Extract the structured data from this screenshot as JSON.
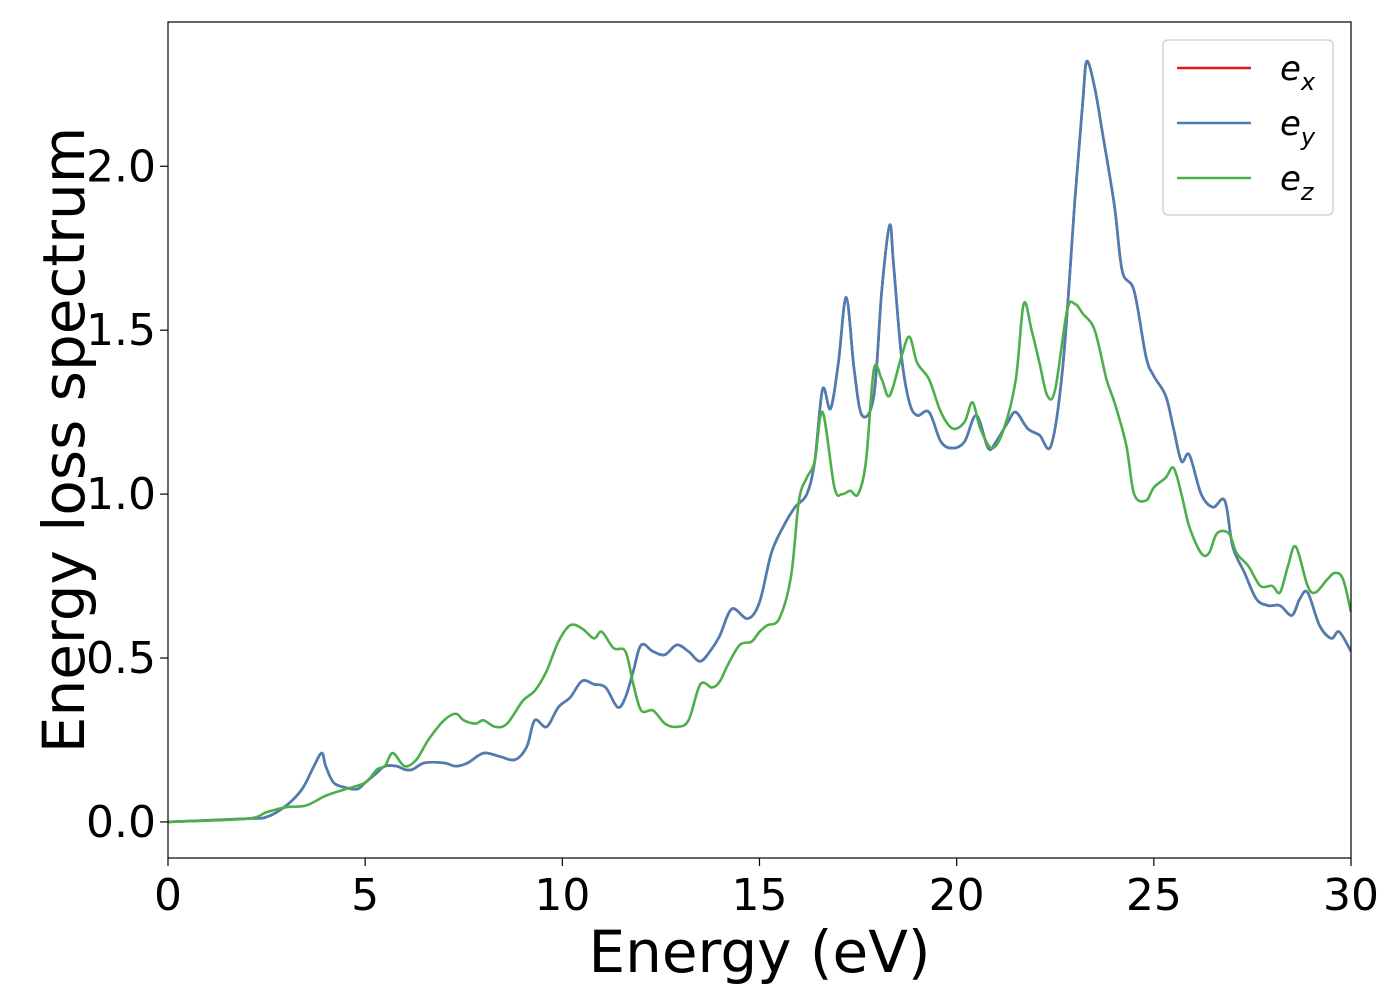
{
  "chart_data": {
    "type": "line",
    "xlabel": "Energy (eV)",
    "ylabel": "Energy loss spectrum",
    "xlim": [
      0,
      30
    ],
    "ylim": [
      -0.11,
      2.44
    ],
    "xticks": [
      0,
      5,
      10,
      15,
      20,
      25,
      30
    ],
    "xtick_labels": [
      "0",
      "5",
      "10",
      "15",
      "20",
      "25",
      "30"
    ],
    "yticks": [
      0.0,
      0.5,
      1.0,
      1.5,
      2.0
    ],
    "ytick_labels": [
      "0.0",
      "0.5",
      "1.0",
      "1.5",
      "2.0"
    ],
    "grid": false,
    "legend_position": "top-right",
    "legend": [
      {
        "base": "e",
        "sub": "x"
      },
      {
        "base": "e",
        "sub": "y"
      },
      {
        "base": "e",
        "sub": "z"
      }
    ],
    "series": [
      {
        "name": "e_x",
        "color": "#e41a1c",
        "x": [
          0,
          2,
          2.5,
          3,
          3.4,
          3.7,
          3.9,
          4.0,
          4.2,
          4.5,
          4.8,
          5.0,
          5.3,
          5.5,
          5.8,
          6.0,
          6.2,
          6.5,
          7.0,
          7.3,
          7.6,
          8.0,
          8.4,
          8.8,
          9.1,
          9.3,
          9.6,
          9.9,
          10.2,
          10.5,
          10.8,
          11.1,
          11.4,
          11.6,
          11.8,
          12.0,
          12.3,
          12.6,
          12.9,
          13.2,
          13.5,
          13.8,
          14.0,
          14.3,
          14.7,
          15.0,
          15.3,
          15.6,
          15.9,
          16.2,
          16.4,
          16.6,
          16.8,
          17.0,
          17.2,
          17.4,
          17.6,
          17.9,
          18.1,
          18.3,
          18.4,
          18.6,
          18.8,
          19.0,
          19.3,
          19.6,
          19.9,
          20.2,
          20.5,
          20.8,
          21.0,
          21.3,
          21.5,
          21.8,
          22.1,
          22.4,
          22.7,
          23.0,
          23.2,
          23.3,
          23.5,
          23.7,
          24.0,
          24.2,
          24.5,
          24.8,
          25.0,
          25.3,
          25.5,
          25.7,
          25.9,
          26.2,
          26.5,
          26.8,
          27.0,
          27.3,
          27.6,
          27.9,
          28.2,
          28.5,
          28.7,
          28.9,
          29.2,
          29.5,
          29.7,
          30.0
        ],
        "y": [
          0,
          0.01,
          0.015,
          0.05,
          0.1,
          0.17,
          0.21,
          0.17,
          0.12,
          0.105,
          0.1,
          0.12,
          0.15,
          0.17,
          0.17,
          0.16,
          0.16,
          0.18,
          0.18,
          0.17,
          0.18,
          0.21,
          0.2,
          0.19,
          0.23,
          0.31,
          0.29,
          0.35,
          0.38,
          0.43,
          0.42,
          0.41,
          0.35,
          0.38,
          0.46,
          0.54,
          0.52,
          0.51,
          0.54,
          0.52,
          0.49,
          0.53,
          0.57,
          0.65,
          0.62,
          0.67,
          0.82,
          0.9,
          0.96,
          1.0,
          1.1,
          1.32,
          1.26,
          1.4,
          1.6,
          1.38,
          1.24,
          1.3,
          1.62,
          1.82,
          1.7,
          1.42,
          1.28,
          1.24,
          1.25,
          1.16,
          1.14,
          1.16,
          1.24,
          1.14,
          1.16,
          1.22,
          1.25,
          1.2,
          1.18,
          1.15,
          1.4,
          1.9,
          2.2,
          2.32,
          2.24,
          2.1,
          1.88,
          1.68,
          1.62,
          1.42,
          1.36,
          1.3,
          1.2,
          1.1,
          1.12,
          1.0,
          0.96,
          0.98,
          0.84,
          0.76,
          0.68,
          0.66,
          0.66,
          0.63,
          0.68,
          0.7,
          0.6,
          0.56,
          0.58,
          0.52
        ]
      },
      {
        "name": "e_y",
        "color": "#4a7fb5",
        "x": [
          0,
          2,
          2.5,
          3,
          3.4,
          3.7,
          3.9,
          4.0,
          4.2,
          4.5,
          4.8,
          5.0,
          5.3,
          5.5,
          5.8,
          6.0,
          6.2,
          6.5,
          7.0,
          7.3,
          7.6,
          8.0,
          8.4,
          8.8,
          9.1,
          9.3,
          9.6,
          9.9,
          10.2,
          10.5,
          10.8,
          11.1,
          11.4,
          11.6,
          11.8,
          12.0,
          12.3,
          12.6,
          12.9,
          13.2,
          13.5,
          13.8,
          14.0,
          14.3,
          14.7,
          15.0,
          15.3,
          15.6,
          15.9,
          16.2,
          16.4,
          16.6,
          16.8,
          17.0,
          17.2,
          17.4,
          17.6,
          17.9,
          18.1,
          18.3,
          18.4,
          18.6,
          18.8,
          19.0,
          19.3,
          19.6,
          19.9,
          20.2,
          20.5,
          20.8,
          21.0,
          21.3,
          21.5,
          21.8,
          22.1,
          22.4,
          22.7,
          23.0,
          23.2,
          23.3,
          23.5,
          23.7,
          24.0,
          24.2,
          24.5,
          24.8,
          25.0,
          25.3,
          25.5,
          25.7,
          25.9,
          26.2,
          26.5,
          26.8,
          27.0,
          27.3,
          27.6,
          27.9,
          28.2,
          28.5,
          28.7,
          28.9,
          29.2,
          29.5,
          29.7,
          30.0
        ],
        "y": [
          0,
          0.01,
          0.015,
          0.05,
          0.1,
          0.17,
          0.21,
          0.17,
          0.12,
          0.105,
          0.1,
          0.12,
          0.15,
          0.17,
          0.17,
          0.16,
          0.16,
          0.18,
          0.18,
          0.17,
          0.18,
          0.21,
          0.2,
          0.19,
          0.23,
          0.31,
          0.29,
          0.35,
          0.38,
          0.43,
          0.42,
          0.41,
          0.35,
          0.38,
          0.46,
          0.54,
          0.52,
          0.51,
          0.54,
          0.52,
          0.49,
          0.53,
          0.57,
          0.65,
          0.62,
          0.67,
          0.82,
          0.9,
          0.96,
          1.0,
          1.1,
          1.32,
          1.26,
          1.4,
          1.6,
          1.38,
          1.24,
          1.3,
          1.62,
          1.82,
          1.7,
          1.42,
          1.28,
          1.24,
          1.25,
          1.16,
          1.14,
          1.16,
          1.24,
          1.14,
          1.16,
          1.22,
          1.25,
          1.2,
          1.18,
          1.15,
          1.4,
          1.9,
          2.2,
          2.32,
          2.24,
          2.1,
          1.88,
          1.68,
          1.62,
          1.42,
          1.36,
          1.3,
          1.2,
          1.1,
          1.12,
          1.0,
          0.96,
          0.98,
          0.84,
          0.76,
          0.68,
          0.66,
          0.66,
          0.63,
          0.68,
          0.7,
          0.6,
          0.56,
          0.58,
          0.52
        ]
      },
      {
        "name": "e_z",
        "color": "#4daf4a",
        "x": [
          0,
          2,
          2.5,
          3,
          3.5,
          4.0,
          4.5,
          5.0,
          5.3,
          5.5,
          5.7,
          6.0,
          6.3,
          6.6,
          7.0,
          7.3,
          7.5,
          7.8,
          8.0,
          8.3,
          8.6,
          9.0,
          9.3,
          9.6,
          9.9,
          10.2,
          10.5,
          10.8,
          11.0,
          11.3,
          11.6,
          11.8,
          12.0,
          12.3,
          12.6,
          12.9,
          13.2,
          13.5,
          13.8,
          14.0,
          14.2,
          14.5,
          14.8,
          15.0,
          15.2,
          15.5,
          15.8,
          16.0,
          16.2,
          16.4,
          16.6,
          16.9,
          17.1,
          17.3,
          17.5,
          17.7,
          17.9,
          18.1,
          18.3,
          18.6,
          18.8,
          19.0,
          19.3,
          19.6,
          19.9,
          20.2,
          20.4,
          20.6,
          20.9,
          21.2,
          21.5,
          21.7,
          21.9,
          22.1,
          22.3,
          22.5,
          22.8,
          23.0,
          23.2,
          23.5,
          23.8,
          24.0,
          24.3,
          24.5,
          24.8,
          25.0,
          25.3,
          25.5,
          25.7,
          25.9,
          26.2,
          26.4,
          26.6,
          26.9,
          27.1,
          27.4,
          27.7,
          28.0,
          28.2,
          28.4,
          28.6,
          28.9,
          29.1,
          29.4,
          29.6,
          29.8,
          30.0
        ],
        "y": [
          0,
          0.01,
          0.03,
          0.045,
          0.05,
          0.08,
          0.1,
          0.12,
          0.16,
          0.17,
          0.21,
          0.17,
          0.19,
          0.25,
          0.31,
          0.33,
          0.31,
          0.3,
          0.31,
          0.29,
          0.3,
          0.37,
          0.4,
          0.46,
          0.55,
          0.6,
          0.59,
          0.56,
          0.58,
          0.53,
          0.52,
          0.42,
          0.34,
          0.34,
          0.3,
          0.29,
          0.31,
          0.42,
          0.41,
          0.43,
          0.48,
          0.54,
          0.55,
          0.58,
          0.6,
          0.62,
          0.75,
          0.98,
          1.05,
          1.1,
          1.25,
          1.02,
          1.0,
          1.01,
          1.0,
          1.1,
          1.38,
          1.35,
          1.3,
          1.42,
          1.48,
          1.4,
          1.35,
          1.25,
          1.2,
          1.22,
          1.28,
          1.2,
          1.14,
          1.2,
          1.35,
          1.58,
          1.5,
          1.4,
          1.3,
          1.32,
          1.56,
          1.58,
          1.55,
          1.5,
          1.35,
          1.28,
          1.15,
          1.0,
          0.98,
          1.02,
          1.05,
          1.08,
          1.0,
          0.9,
          0.82,
          0.82,
          0.88,
          0.88,
          0.82,
          0.78,
          0.72,
          0.72,
          0.7,
          0.78,
          0.84,
          0.72,
          0.7,
          0.74,
          0.76,
          0.74,
          0.64
        ]
      }
    ]
  }
}
